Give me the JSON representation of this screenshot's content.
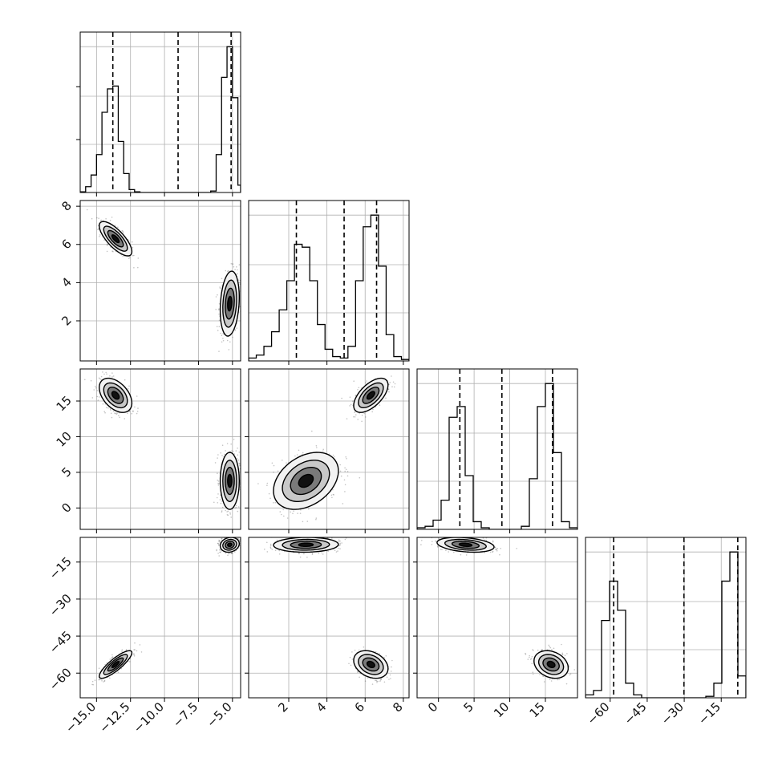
{
  "chart_data": {
    "type": "corner",
    "grid": true,
    "params": [
      {
        "ticks": [
          -15.0,
          -12.5,
          -10.0,
          -7.5,
          -5.0
        ],
        "tick_labels": [
          "−15.0",
          "−12.5",
          "−10.0",
          "−7.5",
          "−5.0"
        ],
        "range": [
          -16.2,
          -4.4
        ]
      },
      {
        "ticks": [
          2,
          4,
          6,
          8
        ],
        "tick_labels": [
          "2",
          "4",
          "6",
          "8"
        ],
        "range": [
          -0.1,
          8.3
        ]
      },
      {
        "ticks": [
          0,
          5,
          10,
          15
        ],
        "tick_labels": [
          "0",
          "5",
          "10",
          "15"
        ],
        "range": [
          -3,
          19.5
        ]
      },
      {
        "ticks": [
          -60,
          -45,
          -30,
          -15
        ],
        "tick_labels": [
          "−60",
          "−45",
          "−30",
          "−15"
        ],
        "range": [
          -70,
          -5
        ]
      }
    ],
    "quantile_lines": [
      [
        -13.8,
        -9.0,
        -5.1
      ],
      [
        2.4,
        4.9,
        6.6
      ],
      [
        3.0,
        8.9,
        16.0
      ],
      [
        -58.6,
        -30.1,
        -8.3
      ]
    ],
    "histograms": [
      {
        "bin_edges": [
          -16.2,
          -15.8,
          -15.4,
          -15.0,
          -14.6,
          -14.2,
          -13.8,
          -13.4,
          -13.0,
          -12.6,
          -12.2,
          -11.8,
          -11.4,
          -11.0,
          -10.6,
          -10.2,
          -9.8,
          -9.4,
          -9.0,
          -8.6,
          -8.2,
          -7.8,
          -7.4,
          -7.0,
          -6.6,
          -6.2,
          -5.8,
          -5.4,
          -5.0,
          -4.6,
          -4.4
        ],
        "counts": [
          0.005,
          0.04,
          0.12,
          0.26,
          0.55,
          0.71,
          0.73,
          0.35,
          0.13,
          0.02,
          0.005,
          0,
          0,
          0,
          0,
          0,
          0,
          0,
          0,
          0,
          0,
          0,
          0,
          0,
          0.01,
          0.26,
          0.79,
          1.0,
          0.65,
          0.05
        ]
      },
      {
        "bin_edges": [
          -0.1,
          0.3,
          0.7,
          1.1,
          1.5,
          1.9,
          2.3,
          2.7,
          3.1,
          3.5,
          3.9,
          4.3,
          4.7,
          5.1,
          5.5,
          5.9,
          6.3,
          6.7,
          7.1,
          7.5,
          7.9,
          8.3
        ],
        "counts": [
          0.02,
          0.04,
          0.1,
          0.2,
          0.35,
          0.55,
          0.8,
          0.78,
          0.55,
          0.25,
          0.08,
          0.03,
          0.02,
          0.1,
          0.55,
          0.92,
          1.0,
          0.65,
          0.18,
          0.03,
          0.01
        ]
      },
      {
        "bin_edges": [
          -3,
          -1.875,
          -0.75,
          0.375,
          1.5,
          2.625,
          3.75,
          4.875,
          6.0,
          7.125,
          8.25,
          9.375,
          10.5,
          11.625,
          12.75,
          13.875,
          15.0,
          16.125,
          17.25,
          18.375,
          19.5
        ],
        "counts": [
          0.01,
          0.02,
          0.06,
          0.19,
          0.73,
          0.8,
          0.35,
          0.05,
          0.01,
          0,
          0,
          0,
          0,
          0.02,
          0.33,
          0.8,
          0.95,
          0.5,
          0.05,
          0.01
        ]
      },
      {
        "bin_edges": [
          -70,
          -66.75,
          -63.5,
          -60.25,
          -57,
          -53.75,
          -50.5,
          -47.25,
          -44,
          -40.75,
          -37.5,
          -34.25,
          -31,
          -27.75,
          -24.5,
          -21.25,
          -18,
          -14.75,
          -11.5,
          -8.25,
          -5
        ],
        "counts": [
          0.02,
          0.05,
          0.53,
          0.8,
          0.6,
          0.1,
          0.02,
          0,
          0,
          0,
          0,
          0,
          0,
          0,
          0,
          0.01,
          0.1,
          0.8,
          1.0,
          0.15
        ]
      }
    ],
    "modes": [
      {
        "mean": [
          -13.6,
          6.3,
          15.8,
          -56.5
        ],
        "sd": [
          0.6,
          0.45,
          1.2,
          2.8
        ],
        "weight": 0.42
      },
      {
        "mean": [
          -5.2,
          2.9,
          3.8,
          -8.0
        ],
        "sd": [
          0.35,
          0.85,
          2.0,
          1.5
        ],
        "weight": 0.58
      }
    ],
    "correlations": {
      "0-1": [
        -0.75,
        0.2
      ],
      "0-2": [
        -0.45,
        0.0
      ],
      "0-3": [
        0.85,
        0.15
      ],
      "1-2": [
        0.6,
        0.35
      ],
      "1-3": [
        -0.3,
        0.05
      ],
      "2-3": [
        -0.25,
        -0.3
      ]
    }
  }
}
